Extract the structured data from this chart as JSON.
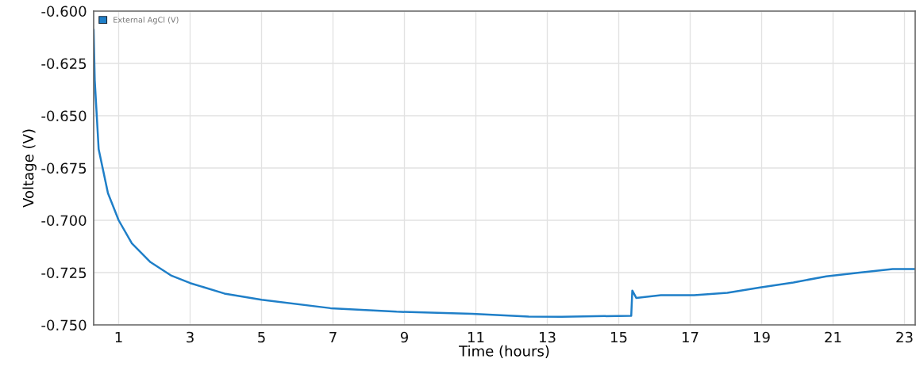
{
  "chart_data": {
    "type": "line",
    "xlabel": "Time (hours)",
    "ylabel": "Voltage (V)",
    "xlim": [
      0.3,
      23.3
    ],
    "xticks": [
      1,
      3,
      5,
      7,
      9,
      11,
      13,
      15,
      17,
      19,
      21,
      23
    ],
    "ylim": [
      -0.75,
      -0.6
    ],
    "yticks": [
      {
        "value": -0.6,
        "label": "-0.600"
      },
      {
        "value": -0.625,
        "label": "-0.625"
      },
      {
        "value": -0.65,
        "label": "-0.650"
      },
      {
        "value": -0.675,
        "label": "-0.675"
      },
      {
        "value": -0.7,
        "label": "-0.700"
      },
      {
        "value": -0.725,
        "label": "-0.725"
      },
      {
        "value": -0.75,
        "label": "-0.750"
      }
    ],
    "grid": true,
    "legend": "top left",
    "marker": "none",
    "line_style": "solid",
    "series": [
      {
        "name": "External AgCl (V)",
        "color": "#1f7fc8",
        "x": [
          0.3,
          0.33,
          0.44,
          0.7,
          1.0,
          1.37,
          1.89,
          2.48,
          3.0,
          3.96,
          5.0,
          6.93,
          8.78,
          10.9,
          12.48,
          13.4,
          15.35,
          15.38,
          15.49,
          16.18,
          17.11,
          18.04,
          18.96,
          19.89,
          20.81,
          21.74,
          22.67,
          23.27
        ],
        "values": [
          -0.609,
          -0.633,
          -0.666,
          -0.687,
          -0.7,
          -0.711,
          -0.72,
          -0.7265,
          -0.73,
          -0.735,
          -0.738,
          -0.742,
          -0.7437,
          -0.7447,
          -0.746,
          -0.7461,
          -0.7456,
          -0.7336,
          -0.7371,
          -0.7358,
          -0.7358,
          -0.7347,
          -0.7321,
          -0.7297,
          -0.7268,
          -0.725,
          -0.7233,
          -0.7233
        ]
      }
    ]
  }
}
